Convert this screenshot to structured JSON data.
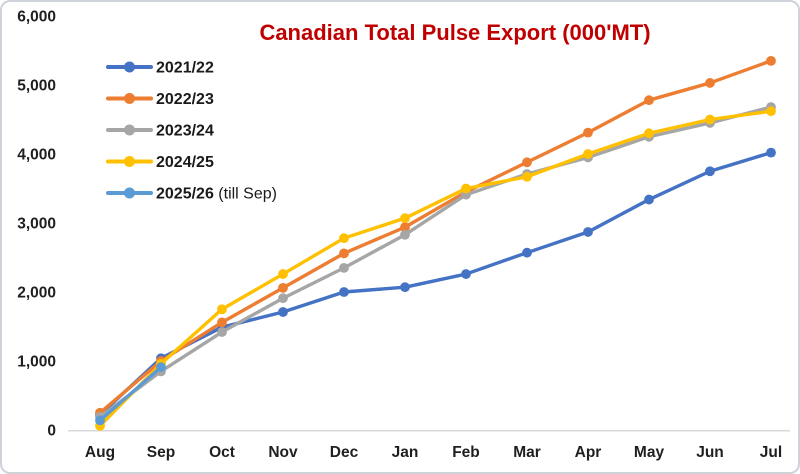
{
  "title": "Canadian Total Pulse Export (000'MT)",
  "colors": {
    "title": "#C00000",
    "axis_line": "#D9D9D9",
    "tick_text": "#1F1F1F",
    "frame_border": "#CDD3D8",
    "background": "#FFFFFF"
  },
  "chart_data": {
    "type": "line",
    "title": "Canadian Total Pulse Export (000'MT)",
    "xlabel": "",
    "ylabel": "",
    "categories": [
      "Aug",
      "Sep",
      "Oct",
      "Nov",
      "Dec",
      "Jan",
      "Feb",
      "Mar",
      "Apr",
      "May",
      "Jun",
      "Jul"
    ],
    "series": [
      {
        "name": "2021/22",
        "label": "2021/22",
        "suffix": "",
        "color": "#4472C4",
        "values": [
          220,
          1040,
          1490,
          1710,
          2000,
          2070,
          2260,
          2570,
          2870,
          3340,
          3750,
          4020
        ]
      },
      {
        "name": "2022/23",
        "label": "2022/23",
        "suffix": "",
        "color": "#ED7D31",
        "values": [
          250,
          1000,
          1560,
          2060,
          2560,
          2940,
          3450,
          3880,
          4310,
          4780,
          5030,
          5350
        ]
      },
      {
        "name": "2023/24",
        "label": "2023/24",
        "suffix": "",
        "color": "#A6A6A6",
        "values": [
          190,
          850,
          1420,
          1910,
          2350,
          2830,
          3410,
          3710,
          3950,
          4250,
          4450,
          4680
        ]
      },
      {
        "name": "2024/25",
        "label": "2024/25",
        "suffix": "",
        "color": "#FFC000",
        "values": [
          60,
          960,
          1750,
          2260,
          2780,
          3070,
          3500,
          3670,
          4000,
          4300,
          4500,
          4620
        ]
      },
      {
        "name": "2025/26 (till Sep)",
        "label": "2025/26",
        "suffix": " (till Sep)",
        "color": "#5B9BD5",
        "values": [
          140,
          910
        ]
      }
    ],
    "ylim": [
      0,
      6000
    ],
    "y_tick_step": 1000,
    "y_tick_labels": [
      "0",
      "1,000",
      "2,000",
      "3,000",
      "4,000",
      "5,000",
      "6,000"
    ],
    "grid": false,
    "legend_position": "top-left",
    "marker": "circle"
  }
}
